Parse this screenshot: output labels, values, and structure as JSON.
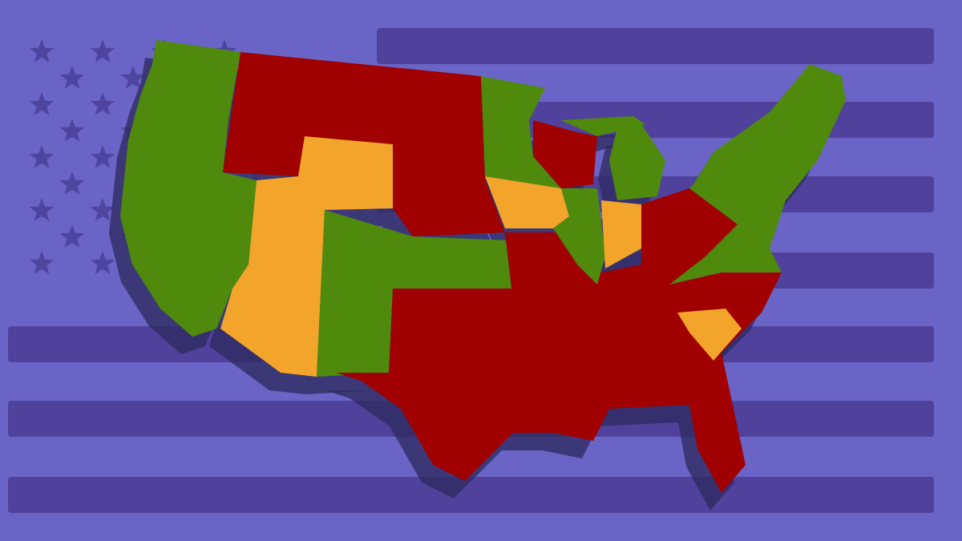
{
  "colors": {
    "background": "#6a64c6",
    "stripe": "#4b3c94",
    "star": "#4f45a0",
    "shadow": "#2e2a5e",
    "green": "#4f8a0c",
    "red": "#a00000",
    "orange": "#f2a52a"
  },
  "map": {
    "regions": [
      {
        "name": "west-coast",
        "category": "green"
      },
      {
        "name": "northern-plains",
        "category": "red"
      },
      {
        "name": "utah-arizona",
        "category": "orange"
      },
      {
        "name": "colorado-new-mexico-kansas",
        "category": "green"
      },
      {
        "name": "south",
        "category": "red"
      },
      {
        "name": "minnesota",
        "category": "green"
      },
      {
        "name": "iowa",
        "category": "orange"
      },
      {
        "name": "wisconsin",
        "category": "red"
      },
      {
        "name": "illinois",
        "category": "green"
      },
      {
        "name": "indiana",
        "category": "orange"
      },
      {
        "name": "michigan",
        "category": "green"
      },
      {
        "name": "michigan-upper",
        "category": "green"
      },
      {
        "name": "ohio",
        "category": "red"
      },
      {
        "name": "northeast",
        "category": "green"
      },
      {
        "name": "south-carolina",
        "category": "orange"
      }
    ]
  }
}
